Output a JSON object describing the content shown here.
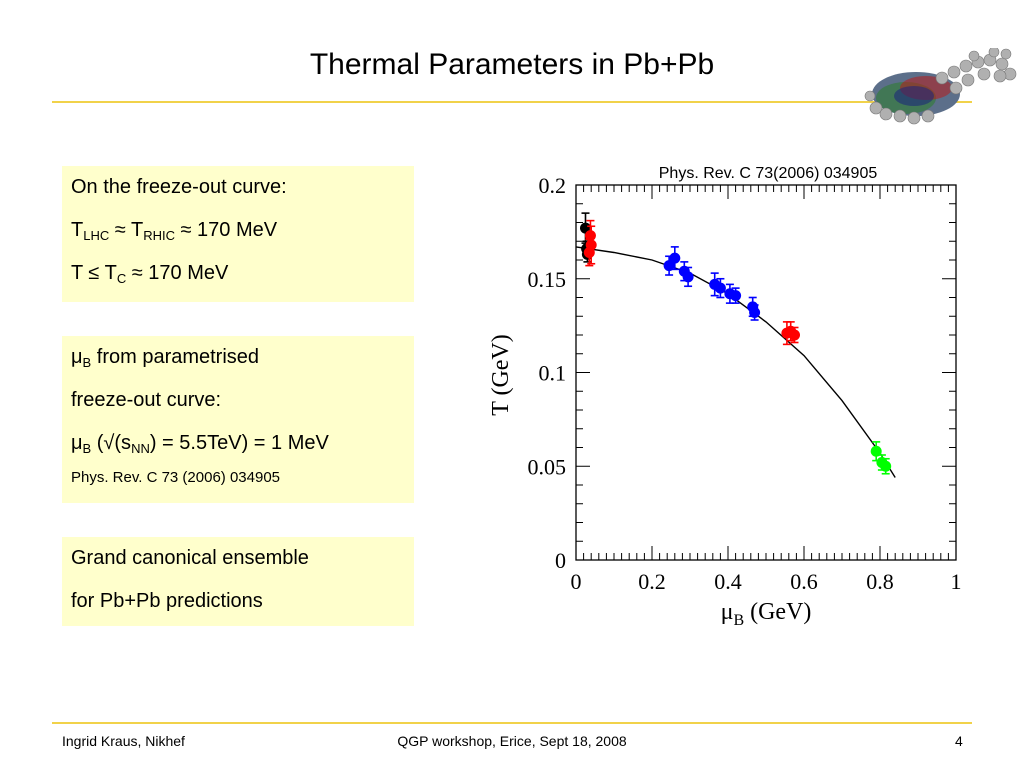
{
  "title": "Thermal Parameters in Pb+Pb",
  "box1": {
    "line1": "On the freeze-out curve:",
    "l2_T1": "T",
    "l2_sub1": "LHC",
    "l2_mid": " ≈ T",
    "l2_sub2": "RHIC",
    "l2_end": " ≈ 170 MeV",
    "l3_T": "T ≤ T",
    "l3_sub": "C",
    "l3_end": " ≈ 170 MeV"
  },
  "box2": {
    "l1_mu": "μ",
    "l1_sub": "B",
    "l1_end": " from parametrised",
    "l2": "freeze-out curve:",
    "l3_mu": "μ",
    "l3_sub": "B",
    "l3_mid": " (√(s",
    "l3_sub2": "NN",
    "l3_end": ") = 5.5TeV) = 1 MeV",
    "ref": "Phys. Rev. C 73 (2006) 034905"
  },
  "box3": {
    "line1": "Grand canonical ensemble",
    "line2": "for Pb+Pb predictions"
  },
  "footer": {
    "author": "Ingrid Kraus, Nikhef",
    "event": "QGP workshop, Erice, Sept 18, 2008",
    "page": "4"
  },
  "chart_data": {
    "type": "scatter",
    "annotation": "Phys. Rev. C 73(2006) 034905",
    "xlabel": "μ",
    "xlabel_sub": "B",
    "xlabel_unit": " (GeV)",
    "ylabel": "T (GeV)",
    "xlim": [
      0,
      1
    ],
    "ylim": [
      0,
      0.2
    ],
    "xticks": [
      0,
      0.2,
      0.4,
      0.6,
      0.8,
      1
    ],
    "xtick_labels": [
      "0",
      "0.2",
      "0.4",
      "0.6",
      "0.8",
      "1"
    ],
    "yticks": [
      0,
      0.05,
      0.1,
      0.15,
      0.2
    ],
    "ytick_labels": [
      "0",
      "0.05",
      "0.1",
      "0.15",
      "0.2"
    ],
    "grid": false,
    "series": [
      {
        "color": "#000000",
        "x": [
          0.025,
          0.028,
          0.03
        ],
        "y": [
          0.177,
          0.166,
          0.163
        ],
        "yerr": [
          0.008,
          0.004,
          0.004
        ]
      },
      {
        "color": "#ff0000",
        "x": [
          0.038,
          0.04,
          0.035,
          0.555,
          0.565,
          0.575
        ],
        "y": [
          0.173,
          0.168,
          0.164,
          0.121,
          0.122,
          0.12
        ],
        "yerr": [
          0.008,
          0.01,
          0.007,
          0.006,
          0.005,
          0.004
        ]
      },
      {
        "color": "#0000ff",
        "x": [
          0.245,
          0.26,
          0.285,
          0.295,
          0.365,
          0.38,
          0.405,
          0.42,
          0.465,
          0.47
        ],
        "y": [
          0.157,
          0.161,
          0.154,
          0.151,
          0.147,
          0.145,
          0.142,
          0.141,
          0.135,
          0.132
        ],
        "yerr": [
          0.005,
          0.006,
          0.005,
          0.005,
          0.006,
          0.005,
          0.005,
          0.004,
          0.005,
          0.004
        ]
      },
      {
        "color": "#00ff00",
        "x": [
          0.79,
          0.805,
          0.815
        ],
        "y": [
          0.058,
          0.052,
          0.05
        ],
        "yerr": [
          0.005,
          0.004,
          0.004
        ]
      }
    ],
    "curve": {
      "x": [
        0.0,
        0.1,
        0.2,
        0.3,
        0.4,
        0.5,
        0.6,
        0.7,
        0.8,
        0.84
      ],
      "y": [
        0.167,
        0.164,
        0.16,
        0.153,
        0.142,
        0.127,
        0.109,
        0.085,
        0.057,
        0.044
      ]
    }
  }
}
